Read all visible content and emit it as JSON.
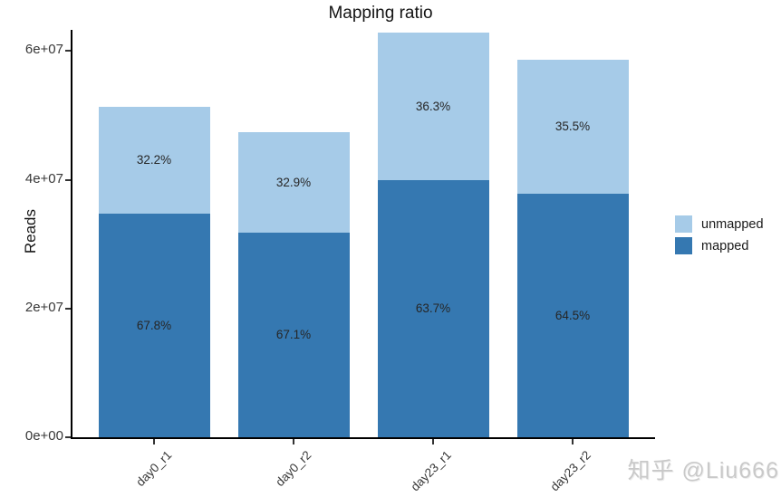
{
  "title": "Mapping ratio",
  "watermark": "知乎 @Liu666",
  "legend": {
    "items": [
      {
        "label": "unmapped",
        "color": "#a6cbe8"
      },
      {
        "label": "mapped",
        "color": "#3578b1"
      }
    ]
  },
  "chart_data": {
    "type": "bar",
    "stacked": true,
    "title": "Mapping ratio",
    "xlabel": "",
    "ylabel": "Reads",
    "grid": false,
    "legend_position": "right",
    "categories": [
      "day0_r1",
      "day0_r2",
      "day23_r1",
      "day23_r2"
    ],
    "series": [
      {
        "name": "mapped",
        "color": "#3578b1",
        "values": [
          34800000,
          31800000,
          40000000,
          37900000
        ],
        "labels": [
          "67.8%",
          "67.1%",
          "63.7%",
          "64.5%"
        ]
      },
      {
        "name": "unmapped",
        "color": "#a6cbe8",
        "values": [
          16500000,
          15600000,
          22800000,
          20800000
        ],
        "labels": [
          "32.2%",
          "32.9%",
          "36.3%",
          "35.5%"
        ]
      }
    ],
    "totals": [
      51300000,
      47400000,
      62800000,
      58700000
    ],
    "yticks": [
      {
        "value": 0,
        "label": "0e+00"
      },
      {
        "value": 20000000,
        "label": "2e+07"
      },
      {
        "value": 40000000,
        "label": "4e+07"
      },
      {
        "value": 60000000,
        "label": "6e+07"
      }
    ],
    "ylim": [
      0,
      63000000
    ]
  }
}
